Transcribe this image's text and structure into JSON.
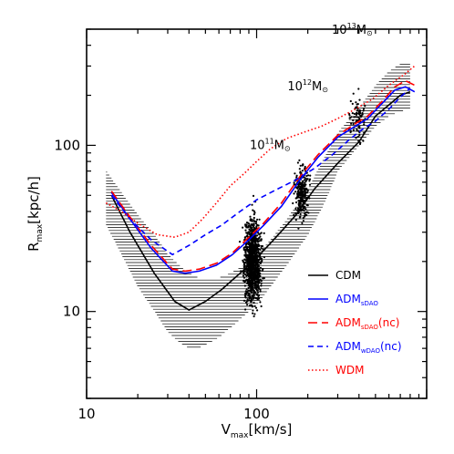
{
  "chart_data": {
    "type": "line",
    "xlabel": {
      "main": "V",
      "sub": "max",
      "tail": "[km/s]"
    },
    "ylabel": {
      "main": "R",
      "sub": "max",
      "tail": "[kpc/h]"
    },
    "x_scale": "log",
    "y_scale": "log",
    "xlim": [
      10,
      1000
    ],
    "ylim": [
      3,
      500
    ],
    "x_ticks": [
      {
        "value": 10,
        "label": "10"
      },
      {
        "value": 100,
        "label": "100"
      }
    ],
    "y_ticks": [
      {
        "value": 10,
        "label": "10"
      },
      {
        "value": 100,
        "label": "100"
      }
    ],
    "grid": false,
    "legend_position": "bottom-right",
    "series": [
      {
        "name": "CDM",
        "legend": {
          "main": "CDM",
          "sub": "",
          "tail": ""
        },
        "color": "#000000",
        "dash": "solid",
        "x": [
          14,
          18,
          25,
          33,
          40,
          50,
          62,
          80,
          100,
          130,
          170,
          220,
          300,
          400,
          500,
          600,
          700,
          800
        ],
        "y": [
          50,
          30,
          17,
          11.5,
          10.2,
          11.5,
          13.5,
          17,
          21,
          28,
          38,
          55,
          78,
          105,
          150,
          175,
          200,
          210
        ]
      },
      {
        "name": "ADM_sDAO",
        "legend": {
          "main": "ADM",
          "sub": "sDAO",
          "tail": ""
        },
        "color": "#0000ff",
        "dash": "solid",
        "x": [
          14,
          18,
          24,
          32,
          38,
          46,
          58,
          72,
          90,
          110,
          140,
          180,
          230,
          300,
          380,
          450,
          550,
          650,
          750,
          850
        ],
        "y": [
          52,
          36,
          24,
          17.5,
          17,
          17.5,
          19,
          22,
          27,
          33,
          43,
          62,
          85,
          112,
          130,
          145,
          180,
          215,
          225,
          210
        ]
      },
      {
        "name": "ADM_sDAO(nc)",
        "legend": {
          "main": "ADM",
          "sub": "sDAO",
          "tail": "(nc)"
        },
        "color": "#ff0000",
        "dash": "long",
        "x": [
          14,
          18,
          24,
          32,
          38,
          46,
          58,
          72,
          90,
          110,
          140,
          180,
          230,
          300,
          380,
          450,
          550,
          650,
          750,
          850
        ],
        "y": [
          53,
          37,
          25,
          18,
          17.5,
          18,
          19.5,
          22.5,
          28,
          34,
          45,
          65,
          88,
          115,
          135,
          150,
          185,
          225,
          245,
          230
        ]
      },
      {
        "name": "ADM_wDAO(nc)",
        "legend": {
          "main": "ADM",
          "sub": "wDAO",
          "tail": "(nc)"
        },
        "color": "#0000ff",
        "dash": "short",
        "x": [
          14,
          18,
          24,
          32,
          40,
          50,
          62,
          80,
          100,
          130,
          170,
          220,
          280,
          350,
          420,
          500,
          600,
          700,
          800
        ],
        "y": [
          50,
          36,
          27,
          22,
          25,
          29,
          33,
          40,
          47,
          54,
          62,
          73,
          88,
          108,
          125,
          140,
          165,
          195,
          220
        ]
      },
      {
        "name": "WDM",
        "legend": {
          "main": "WDM",
          "sub": "",
          "tail": ""
        },
        "color": "#ff0000",
        "dash": "dotted",
        "x": [
          13,
          16,
          20,
          26,
          33,
          40,
          48,
          58,
          70,
          85,
          100,
          120,
          150,
          190,
          240,
          300,
          380,
          480,
          600,
          750,
          850
        ],
        "y": [
          45,
          40,
          34,
          29,
          28,
          30,
          36,
          45,
          57,
          68,
          80,
          95,
          110,
          120,
          130,
          145,
          165,
          190,
          230,
          270,
          300
        ]
      }
    ],
    "shaded_band": {
      "description_color": "#000000",
      "x": [
        13,
        16,
        20,
        25,
        30,
        35,
        40,
        45,
        50,
        60,
        70,
        80,
        90,
        100,
        120,
        150,
        200,
        250,
        300,
        400,
        500,
        600,
        700,
        800
      ],
      "upper": [
        70,
        52,
        38,
        29,
        22,
        19,
        17,
        16,
        16,
        16,
        17,
        18.5,
        20,
        22,
        27,
        36,
        55,
        85,
        120,
        170,
        230,
        280,
        310,
        320
      ],
      "lower": [
        33,
        22,
        14,
        10,
        7.5,
        6.5,
        6,
        6,
        6.3,
        7,
        8,
        9,
        10,
        11,
        14,
        19,
        29,
        45,
        70,
        100,
        130,
        150,
        160,
        165
      ]
    },
    "scatter_clusters": [
      {
        "x_center": 95,
        "y_center": 20,
        "x_spread": 0.035,
        "y_spread": 0.14,
        "n": 1100
      },
      {
        "x_center": 185,
        "y_center": 52,
        "x_spread": 0.028,
        "y_spread": 0.1,
        "n": 260
      },
      {
        "x_center": 390,
        "y_center": 145,
        "x_spread": 0.03,
        "y_spread": 0.07,
        "n": 90
      }
    ],
    "annotations": [
      {
        "base": "10",
        "exp": "11",
        "unit": "M",
        "symbol": "⊙",
        "x": 120,
        "y": 95
      },
      {
        "base": "10",
        "exp": "12",
        "unit": "M",
        "symbol": "⊙",
        "x": 200,
        "y": 215
      },
      {
        "base": "10",
        "exp": "13",
        "unit": "M",
        "symbol": "⊙",
        "x": 365,
        "y": 470
      }
    ]
  }
}
